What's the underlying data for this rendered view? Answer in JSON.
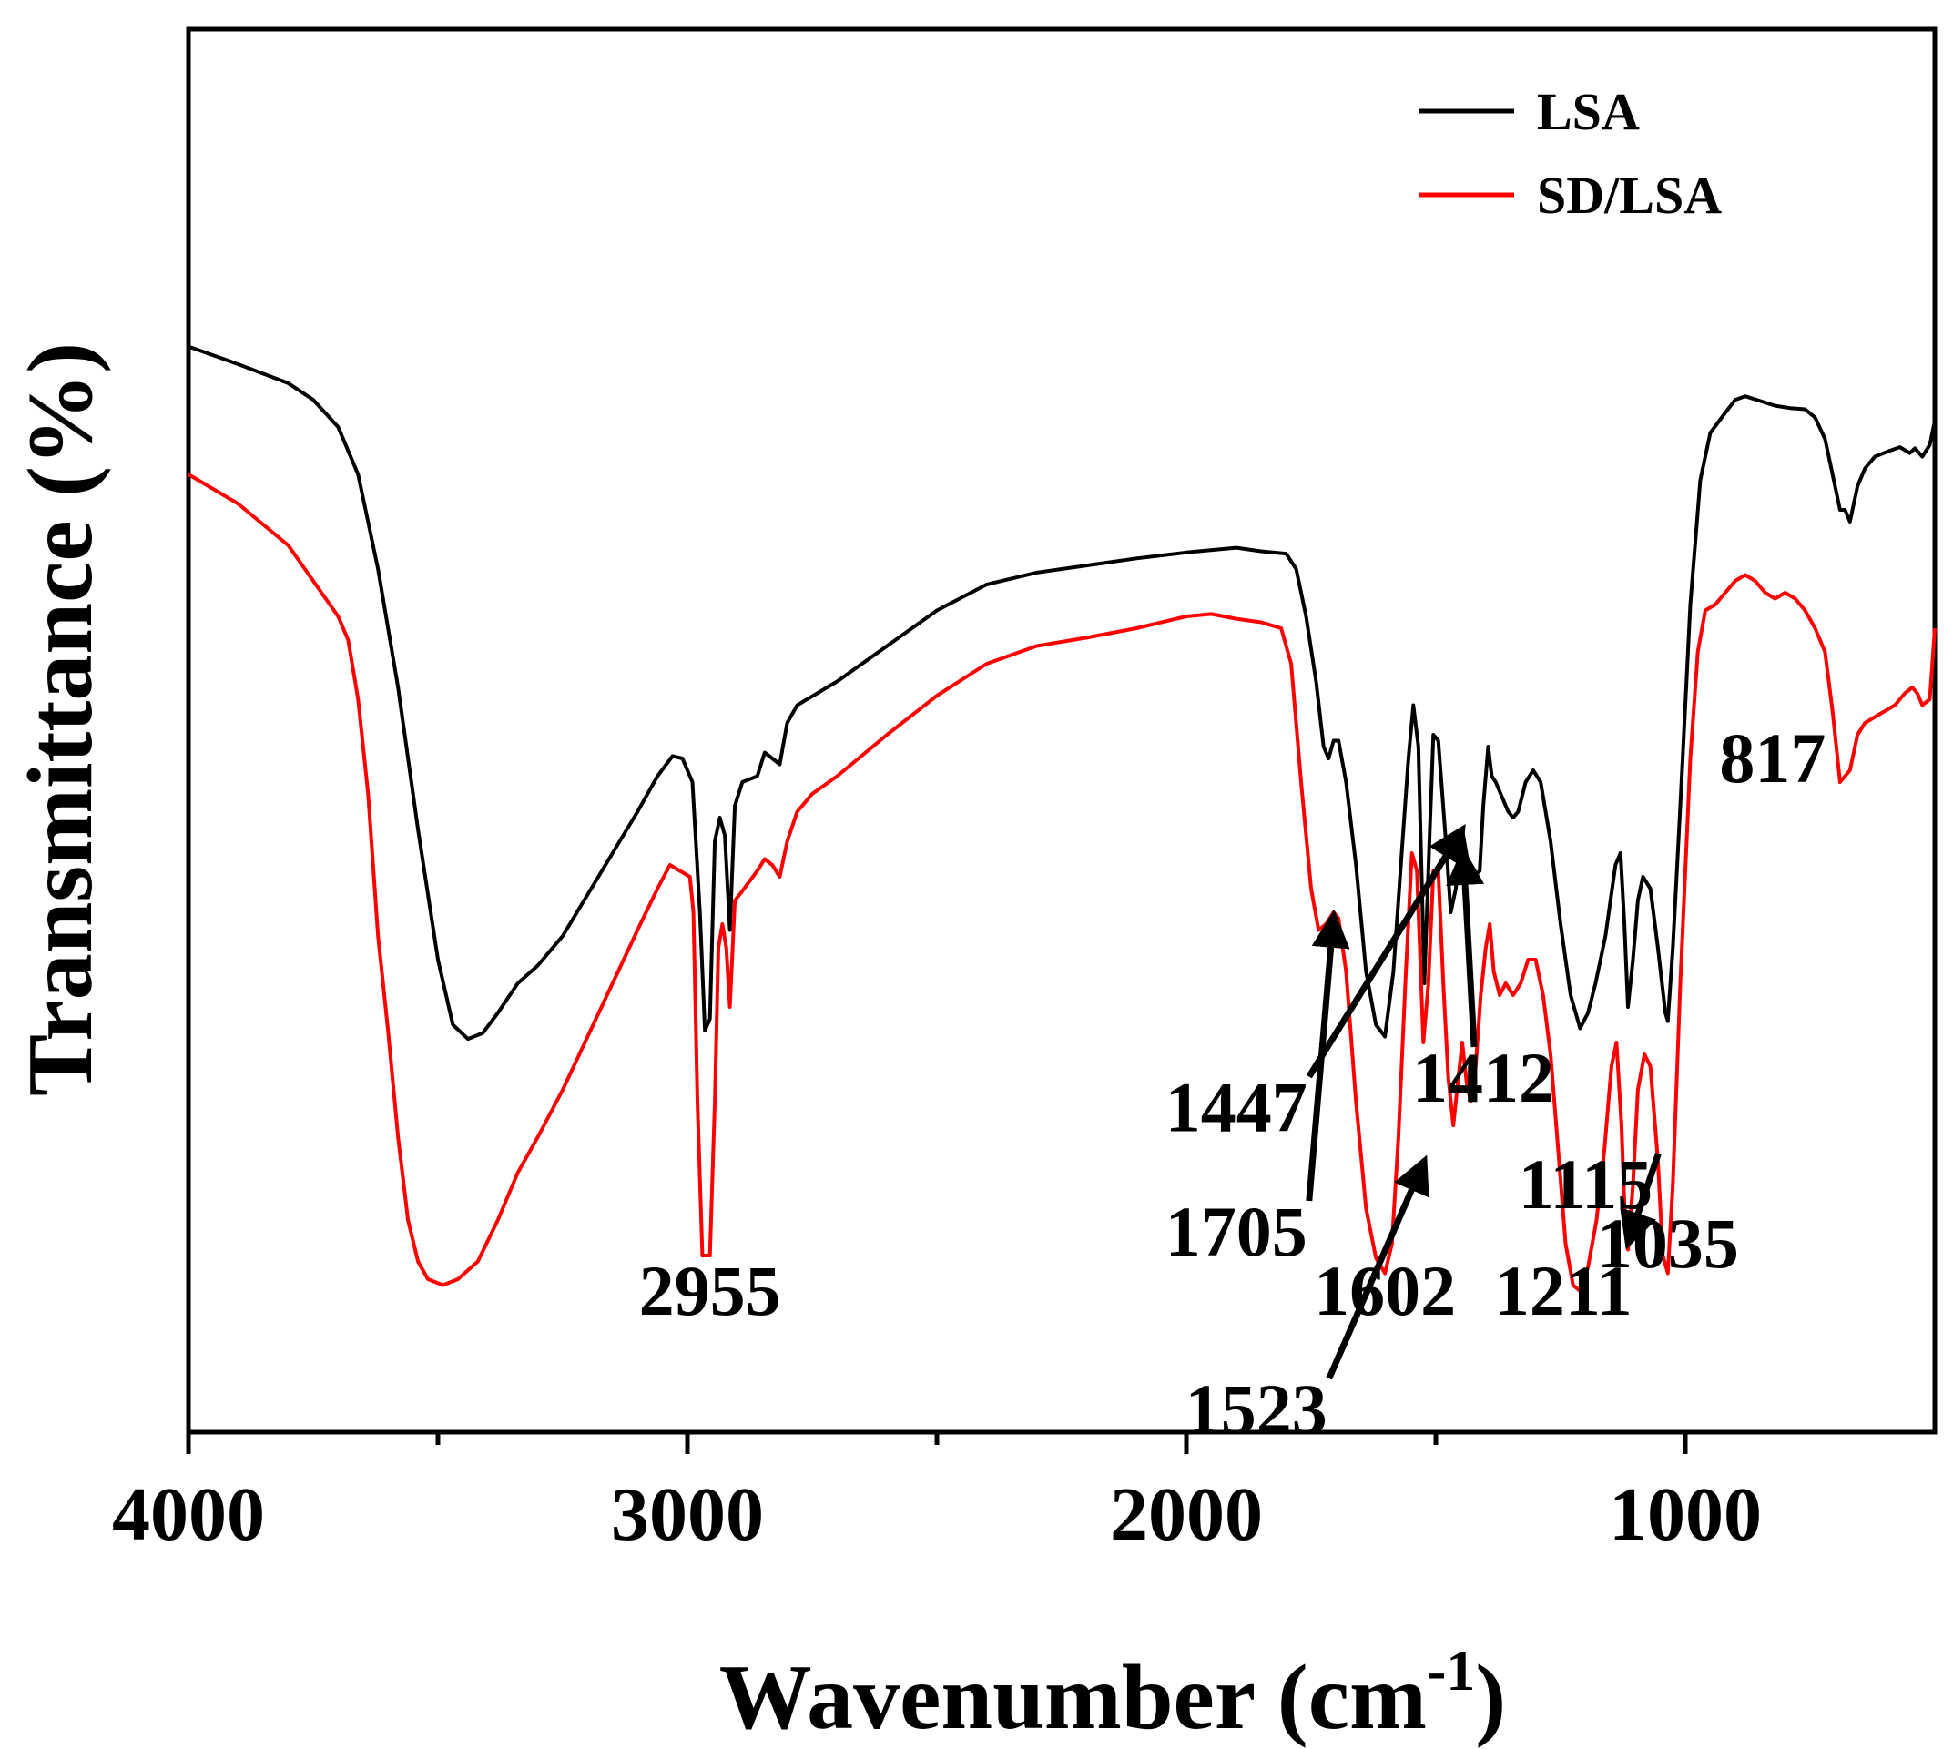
{
  "chart_data": {
    "type": "line",
    "xlabel": "Wavenumber (cm",
    "xlabel_sup": "-1",
    "xlabel_close": ")",
    "ylabel": "Transmittance (%)",
    "xlim": [
      4000,
      500
    ],
    "ylim": [
      0,
      1
    ],
    "x_reversed": true,
    "x_ticks": [
      4000,
      3000,
      2000,
      1000
    ],
    "x_minor_ticks": [
      3500,
      2500,
      1500
    ],
    "y_ticks_shown": false,
    "grid": false,
    "legend_position": "top-right",
    "series": [
      {
        "name": "LSA",
        "color": "#000000",
        "points": [
          [
            4000,
            0.838
          ],
          [
            3900,
            0.823
          ],
          [
            3800,
            0.807
          ],
          [
            3750,
            0.793
          ],
          [
            3700,
            0.77
          ],
          [
            3660,
            0.73
          ],
          [
            3620,
            0.65
          ],
          [
            3580,
            0.55
          ],
          [
            3540,
            0.43
          ],
          [
            3500,
            0.32
          ],
          [
            3470,
            0.265
          ],
          [
            3440,
            0.253
          ],
          [
            3410,
            0.258
          ],
          [
            3380,
            0.275
          ],
          [
            3340,
            0.3
          ],
          [
            3300,
            0.315
          ],
          [
            3250,
            0.34
          ],
          [
            3200,
            0.375
          ],
          [
            3150,
            0.41
          ],
          [
            3100,
            0.445
          ],
          [
            3060,
            0.475
          ],
          [
            3030,
            0.492
          ],
          [
            3010,
            0.49
          ],
          [
            2990,
            0.47
          ],
          [
            2975,
            0.36
          ],
          [
            2965,
            0.26
          ],
          [
            2955,
            0.27
          ],
          [
            2945,
            0.42
          ],
          [
            2935,
            0.44
          ],
          [
            2925,
            0.425
          ],
          [
            2915,
            0.345
          ],
          [
            2905,
            0.45
          ],
          [
            2890,
            0.47
          ],
          [
            2860,
            0.475
          ],
          [
            2845,
            0.495
          ],
          [
            2830,
            0.49
          ],
          [
            2815,
            0.485
          ],
          [
            2800,
            0.52
          ],
          [
            2780,
            0.535
          ],
          [
            2740,
            0.545
          ],
          [
            2700,
            0.555
          ],
          [
            2600,
            0.585
          ],
          [
            2500,
            0.615
          ],
          [
            2400,
            0.637
          ],
          [
            2300,
            0.647
          ],
          [
            2200,
            0.653
          ],
          [
            2100,
            0.659
          ],
          [
            2000,
            0.664
          ],
          [
            1900,
            0.668
          ],
          [
            1850,
            0.665
          ],
          [
            1800,
            0.663
          ],
          [
            1780,
            0.65
          ],
          [
            1760,
            0.61
          ],
          [
            1740,
            0.555
          ],
          [
            1725,
            0.5
          ],
          [
            1715,
            0.49
          ],
          [
            1705,
            0.505
          ],
          [
            1695,
            0.505
          ],
          [
            1680,
            0.47
          ],
          [
            1660,
            0.4
          ],
          [
            1640,
            0.31
          ],
          [
            1620,
            0.265
          ],
          [
            1602,
            0.255
          ],
          [
            1585,
            0.31
          ],
          [
            1570,
            0.4
          ],
          [
            1555,
            0.49
          ],
          [
            1545,
            0.535
          ],
          [
            1535,
            0.5
          ],
          [
            1523,
            0.3
          ],
          [
            1512,
            0.43
          ],
          [
            1505,
            0.51
          ],
          [
            1495,
            0.505
          ],
          [
            1480,
            0.42
          ],
          [
            1470,
            0.36
          ],
          [
            1460,
            0.38
          ],
          [
            1447,
            0.43
          ],
          [
            1435,
            0.4
          ],
          [
            1425,
            0.39
          ],
          [
            1412,
            0.395
          ],
          [
            1405,
            0.45
          ],
          [
            1395,
            0.5
          ],
          [
            1388,
            0.475
          ],
          [
            1380,
            0.47
          ],
          [
            1365,
            0.455
          ],
          [
            1355,
            0.445
          ],
          [
            1345,
            0.44
          ],
          [
            1335,
            0.445
          ],
          [
            1320,
            0.47
          ],
          [
            1305,
            0.48
          ],
          [
            1290,
            0.47
          ],
          [
            1270,
            0.42
          ],
          [
            1250,
            0.35
          ],
          [
            1230,
            0.29
          ],
          [
            1211,
            0.262
          ],
          [
            1195,
            0.275
          ],
          [
            1180,
            0.3
          ],
          [
            1160,
            0.34
          ],
          [
            1140,
            0.4
          ],
          [
            1130,
            0.41
          ],
          [
            1122,
            0.35
          ],
          [
            1115,
            0.28
          ],
          [
            1105,
            0.32
          ],
          [
            1095,
            0.37
          ],
          [
            1085,
            0.39
          ],
          [
            1070,
            0.38
          ],
          [
            1055,
            0.33
          ],
          [
            1040,
            0.275
          ],
          [
            1035,
            0.268
          ],
          [
            1025,
            0.33
          ],
          [
            1010,
            0.45
          ],
          [
            990,
            0.62
          ],
          [
            970,
            0.725
          ],
          [
            950,
            0.765
          ],
          [
            920,
            0.782
          ],
          [
            900,
            0.793
          ],
          [
            880,
            0.796
          ],
          [
            850,
            0.792
          ],
          [
            820,
            0.788
          ],
          [
            790,
            0.786
          ],
          [
            760,
            0.785
          ],
          [
            740,
            0.778
          ],
          [
            720,
            0.76
          ],
          [
            705,
            0.73
          ],
          [
            690,
            0.7
          ],
          [
            680,
            0.7
          ],
          [
            670,
            0.69
          ],
          [
            655,
            0.72
          ],
          [
            640,
            0.735
          ],
          [
            620,
            0.745
          ],
          [
            590,
            0.75
          ],
          [
            570,
            0.753
          ],
          [
            550,
            0.748
          ],
          [
            540,
            0.752
          ],
          [
            525,
            0.745
          ],
          [
            510,
            0.755
          ],
          [
            500,
            0.775
          ]
        ]
      },
      {
        "name": "SD/LSA",
        "color": "#ff0000",
        "points": [
          [
            4000,
            0.73
          ],
          [
            3900,
            0.705
          ],
          [
            3800,
            0.67
          ],
          [
            3750,
            0.64
          ],
          [
            3700,
            0.61
          ],
          [
            3680,
            0.59
          ],
          [
            3660,
            0.54
          ],
          [
            3640,
            0.46
          ],
          [
            3620,
            0.34
          ],
          [
            3600,
            0.26
          ],
          [
            3580,
            0.17
          ],
          [
            3560,
            0.1
          ],
          [
            3540,
            0.065
          ],
          [
            3520,
            0.05
          ],
          [
            3490,
            0.045
          ],
          [
            3460,
            0.05
          ],
          [
            3420,
            0.065
          ],
          [
            3380,
            0.1
          ],
          [
            3340,
            0.14
          ],
          [
            3300,
            0.17
          ],
          [
            3250,
            0.21
          ],
          [
            3200,
            0.255
          ],
          [
            3150,
            0.3
          ],
          [
            3100,
            0.345
          ],
          [
            3060,
            0.38
          ],
          [
            3035,
            0.4
          ],
          [
            3015,
            0.395
          ],
          [
            2995,
            0.39
          ],
          [
            2988,
            0.36
          ],
          [
            2980,
            0.2
          ],
          [
            2970,
            0.07
          ],
          [
            2955,
            0.07
          ],
          [
            2945,
            0.2
          ],
          [
            2938,
            0.33
          ],
          [
            2930,
            0.35
          ],
          [
            2922,
            0.33
          ],
          [
            2915,
            0.28
          ],
          [
            2905,
            0.37
          ],
          [
            2890,
            0.378
          ],
          [
            2860,
            0.395
          ],
          [
            2845,
            0.405
          ],
          [
            2830,
            0.4
          ],
          [
            2815,
            0.39
          ],
          [
            2800,
            0.42
          ],
          [
            2780,
            0.445
          ],
          [
            2750,
            0.46
          ],
          [
            2700,
            0.475
          ],
          [
            2600,
            0.51
          ],
          [
            2500,
            0.543
          ],
          [
            2400,
            0.57
          ],
          [
            2300,
            0.585
          ],
          [
            2200,
            0.592
          ],
          [
            2100,
            0.6
          ],
          [
            2000,
            0.61
          ],
          [
            1950,
            0.612
          ],
          [
            1900,
            0.608
          ],
          [
            1850,
            0.605
          ],
          [
            1810,
            0.6
          ],
          [
            1790,
            0.57
          ],
          [
            1770,
            0.47
          ],
          [
            1750,
            0.38
          ],
          [
            1735,
            0.345
          ],
          [
            1720,
            0.35
          ],
          [
            1705,
            0.36
          ],
          [
            1695,
            0.355
          ],
          [
            1680,
            0.31
          ],
          [
            1660,
            0.2
          ],
          [
            1640,
            0.11
          ],
          [
            1620,
            0.068
          ],
          [
            1602,
            0.055
          ],
          [
            1588,
            0.08
          ],
          [
            1575,
            0.17
          ],
          [
            1560,
            0.31
          ],
          [
            1548,
            0.41
          ],
          [
            1538,
            0.395
          ],
          [
            1525,
            0.25
          ],
          [
            1515,
            0.3
          ],
          [
            1505,
            0.395
          ],
          [
            1495,
            0.395
          ],
          [
            1485,
            0.3
          ],
          [
            1475,
            0.22
          ],
          [
            1465,
            0.18
          ],
          [
            1455,
            0.22
          ],
          [
            1447,
            0.25
          ],
          [
            1438,
            0.215
          ],
          [
            1430,
            0.2
          ],
          [
            1420,
            0.23
          ],
          [
            1410,
            0.29
          ],
          [
            1400,
            0.33
          ],
          [
            1392,
            0.35
          ],
          [
            1384,
            0.31
          ],
          [
            1372,
            0.29
          ],
          [
            1360,
            0.3
          ],
          [
            1345,
            0.29
          ],
          [
            1330,
            0.3
          ],
          [
            1315,
            0.32
          ],
          [
            1300,
            0.32
          ],
          [
            1285,
            0.29
          ],
          [
            1270,
            0.24
          ],
          [
            1255,
            0.16
          ],
          [
            1240,
            0.08
          ],
          [
            1225,
            0.045
          ],
          [
            1211,
            0.04
          ],
          [
            1195,
            0.06
          ],
          [
            1178,
            0.1
          ],
          [
            1162,
            0.16
          ],
          [
            1148,
            0.23
          ],
          [
            1138,
            0.25
          ],
          [
            1128,
            0.18
          ],
          [
            1120,
            0.09
          ],
          [
            1115,
            0.075
          ],
          [
            1105,
            0.13
          ],
          [
            1095,
            0.21
          ],
          [
            1082,
            0.24
          ],
          [
            1070,
            0.23
          ],
          [
            1055,
            0.15
          ],
          [
            1045,
            0.07
          ],
          [
            1035,
            0.055
          ],
          [
            1025,
            0.13
          ],
          [
            1010,
            0.3
          ],
          [
            990,
            0.49
          ],
          [
            975,
            0.58
          ],
          [
            960,
            0.615
          ],
          [
            940,
            0.62
          ],
          [
            920,
            0.63
          ],
          [
            900,
            0.64
          ],
          [
            880,
            0.645
          ],
          [
            860,
            0.64
          ],
          [
            840,
            0.63
          ],
          [
            820,
            0.625
          ],
          [
            800,
            0.63
          ],
          [
            780,
            0.625
          ],
          [
            760,
            0.615
          ],
          [
            740,
            0.6
          ],
          [
            720,
            0.58
          ],
          [
            705,
            0.53
          ],
          [
            690,
            0.47
          ],
          [
            680,
            0.475
          ],
          [
            670,
            0.48
          ],
          [
            655,
            0.51
          ],
          [
            640,
            0.52
          ],
          [
            620,
            0.525
          ],
          [
            600,
            0.53
          ],
          [
            580,
            0.535
          ],
          [
            560,
            0.545
          ],
          [
            545,
            0.55
          ],
          [
            535,
            0.545
          ],
          [
            525,
            0.535
          ],
          [
            510,
            0.54
          ],
          [
            500,
            0.6
          ]
        ]
      }
    ],
    "annotations": [
      {
        "text": "2955",
        "x": 2955,
        "y": 0.02
      },
      {
        "text": "1447",
        "x": 1900,
        "y": 0.175,
        "arrow_to": [
          1447,
          0.43
        ]
      },
      {
        "text": "1412",
        "x": 1405,
        "y": 0.2,
        "arrow_to": [
          1445,
          0.41
        ]
      },
      {
        "text": "1705",
        "x": 1900,
        "y": 0.07,
        "arrow_to": [
          1705,
          0.357
        ]
      },
      {
        "text": "1523",
        "x": 1860,
        "y": -0.08,
        "arrow_to": [
          1523,
          0.15
        ]
      },
      {
        "text": "1115",
        "x": 1200,
        "y": 0.11,
        "arrow_to": [
          1115,
          0.08
        ]
      },
      {
        "text": "1602",
        "x": 1602,
        "y": 0.02
      },
      {
        "text": "1211",
        "x": 1245,
        "y": 0.02
      },
      {
        "text": "1035",
        "x": 1035,
        "y": 0.06
      },
      {
        "text": "817",
        "x": 825,
        "y": 0.47
      }
    ]
  }
}
